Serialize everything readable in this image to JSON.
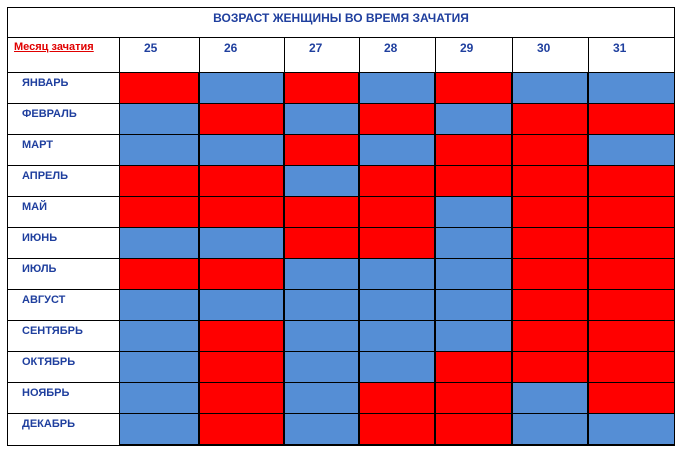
{
  "chart_data": {
    "type": "heatmap",
    "title": "ВОЗРАСТ ЖЕНЩИНЫ ВО ВРЕМЯ ЗАЧАТИЯ",
    "row_header_label": "Месяц зачатия",
    "columns": [
      "25",
      "26",
      "27",
      "28",
      "29",
      "30",
      "31"
    ],
    "rows": [
      "ЯНВАРЬ",
      "ФЕВРАЛЬ",
      "МАРТ",
      "АПРЕЛЬ",
      "МАЙ",
      "ИЮНЬ",
      "ИЮЛЬ",
      "АВГУСТ",
      "СЕНТЯБРЬ",
      "ОКТЯБРЬ",
      "НОЯБРЬ",
      "ДЕКАБРЬ"
    ],
    "colors": {
      "R": "#ff0000",
      "B": "#558ed5"
    },
    "cells": [
      [
        "R",
        "B",
        "R",
        "B",
        "R",
        "B",
        "B"
      ],
      [
        "B",
        "R",
        "B",
        "R",
        "B",
        "R",
        "R"
      ],
      [
        "B",
        "B",
        "R",
        "B",
        "R",
        "R",
        "B"
      ],
      [
        "R",
        "R",
        "B",
        "R",
        "R",
        "R",
        "R"
      ],
      [
        "R",
        "R",
        "R",
        "R",
        "B",
        "R",
        "R"
      ],
      [
        "B",
        "B",
        "R",
        "R",
        "B",
        "R",
        "R"
      ],
      [
        "R",
        "R",
        "B",
        "B",
        "B",
        "R",
        "R"
      ],
      [
        "B",
        "B",
        "B",
        "B",
        "B",
        "R",
        "R"
      ],
      [
        "B",
        "R",
        "B",
        "B",
        "B",
        "R",
        "R"
      ],
      [
        "B",
        "R",
        "B",
        "B",
        "R",
        "R",
        "R"
      ],
      [
        "B",
        "R",
        "B",
        "R",
        "R",
        "B",
        "R"
      ],
      [
        "B",
        "R",
        "B",
        "R",
        "R",
        "B",
        "B"
      ]
    ]
  }
}
